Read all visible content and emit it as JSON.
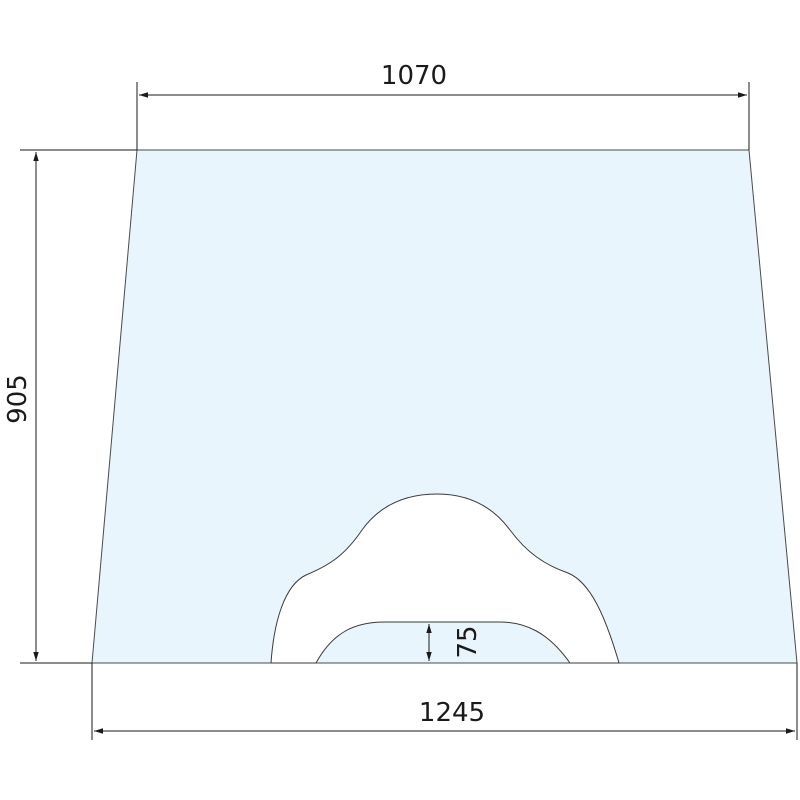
{
  "colors": {
    "glass_fill": "#e8f5fc",
    "line": "#1a1a1a"
  },
  "dimensions": {
    "top_width": "1070",
    "bottom_width": "1245",
    "height": "905",
    "notch_height": "75"
  }
}
